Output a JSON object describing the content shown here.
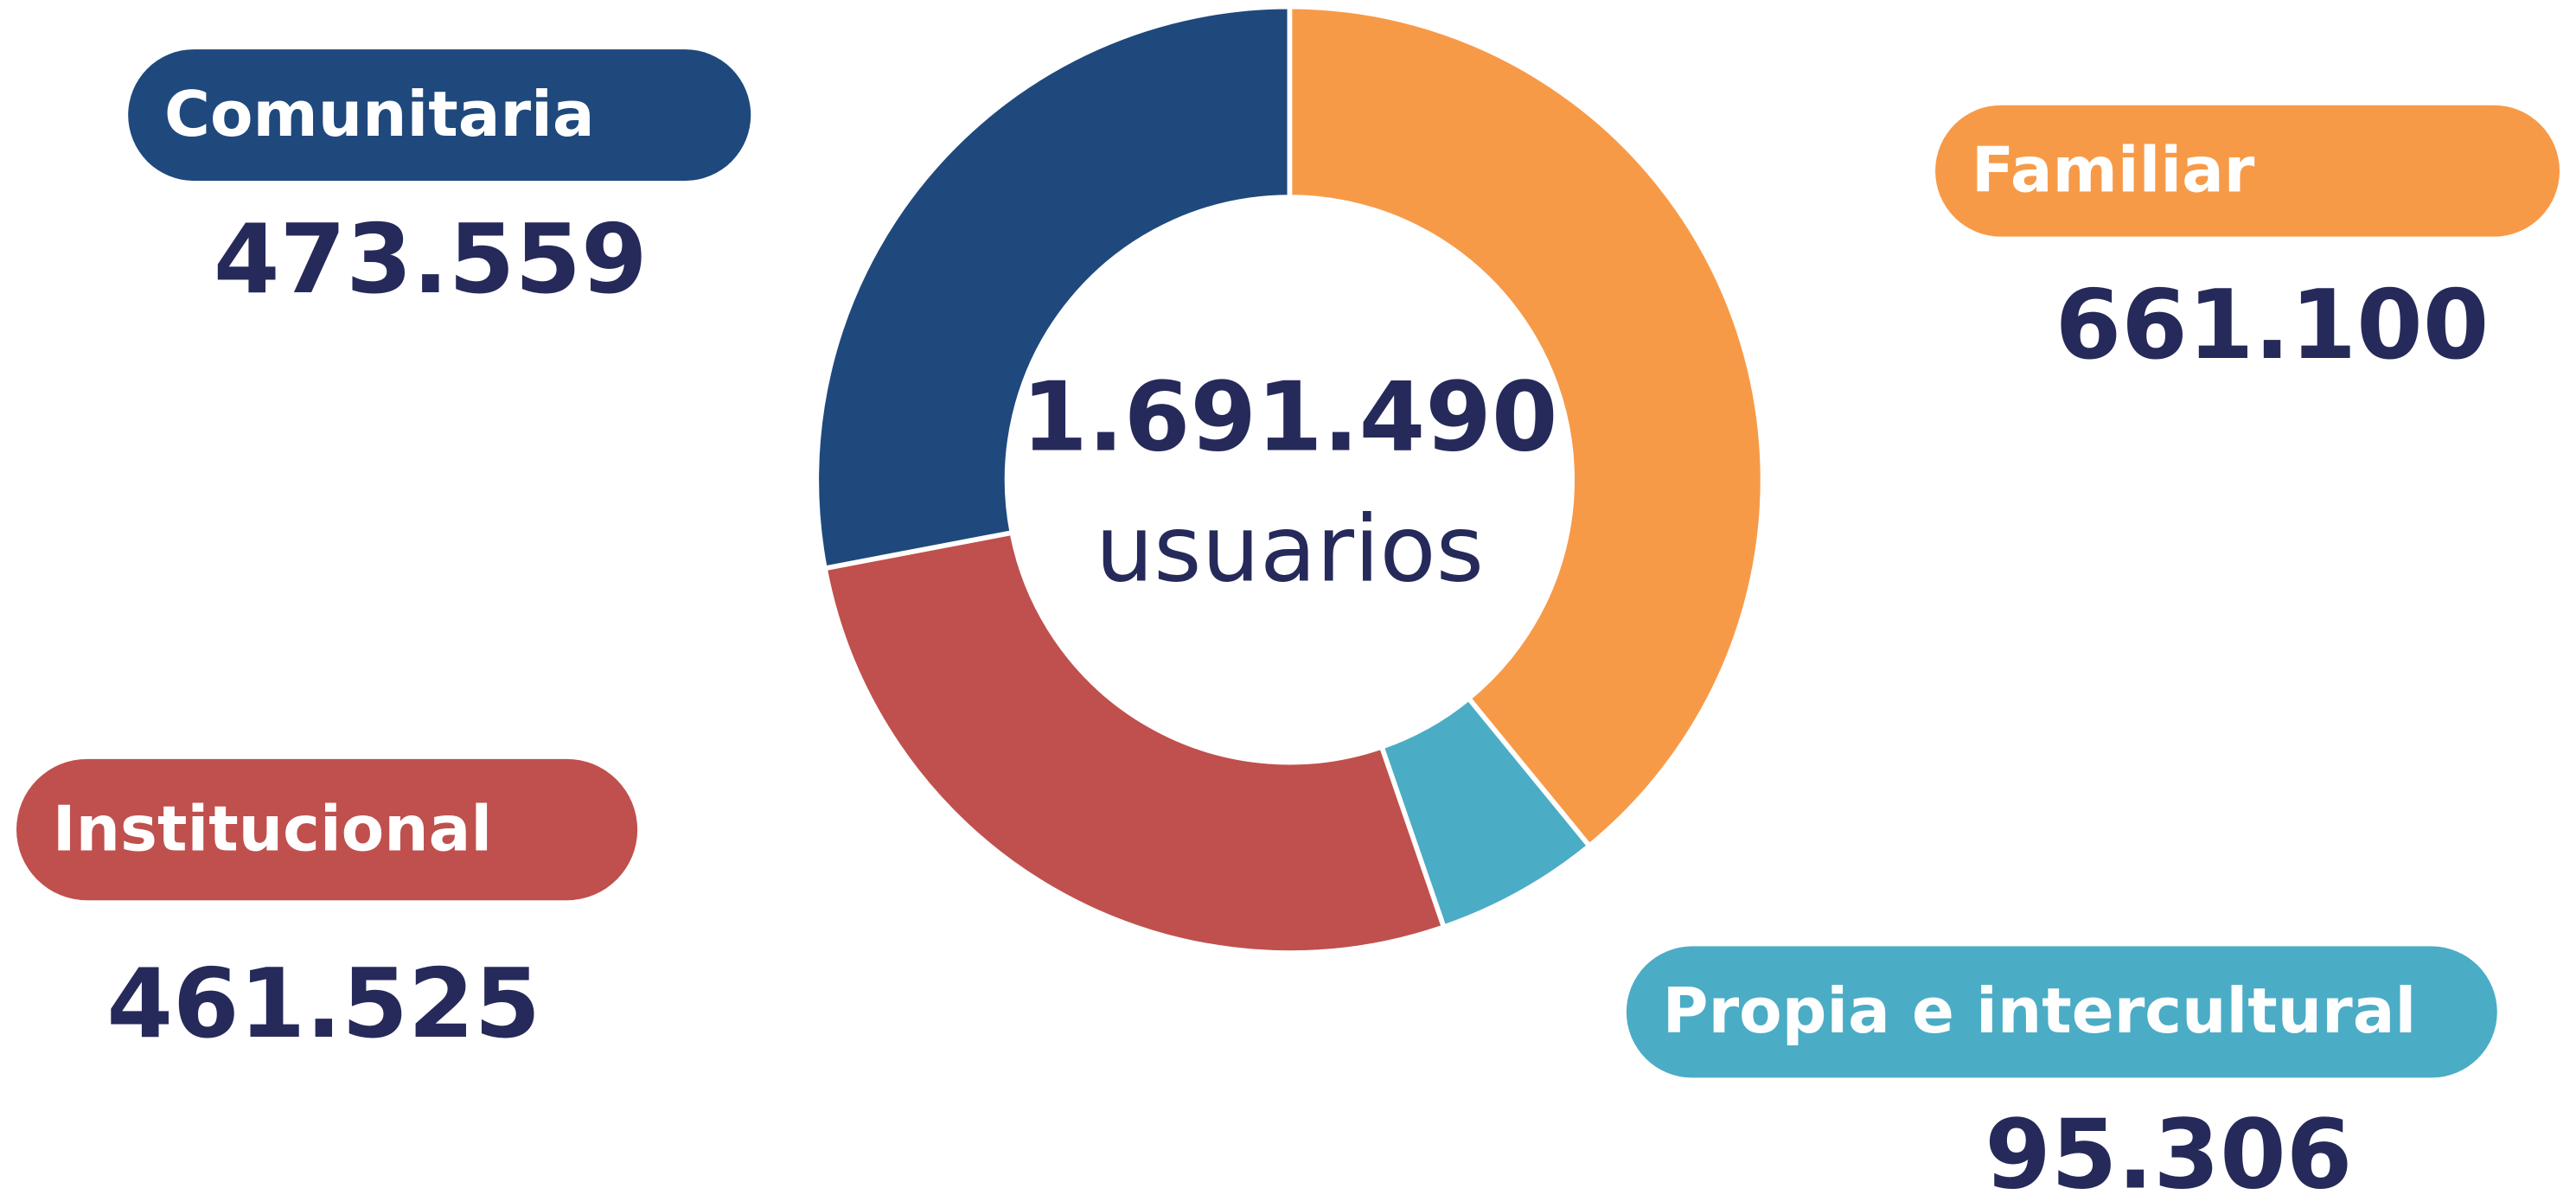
{
  "chart_data": {
    "type": "pie",
    "donut": true,
    "categories": [
      "Familiar",
      "Propia e intercultural",
      "Institucional",
      "Comunitaria"
    ],
    "values": [
      661100,
      95306,
      461525,
      473559
    ],
    "value_labels": [
      "661.100",
      "95.306",
      "461.525",
      "473.559"
    ],
    "colors": [
      "#f79a48",
      "#4bacc6",
      "#c0504d",
      "#1f497d"
    ],
    "total": 1691490,
    "total_label": "1.691.490",
    "center_text": "usuarios"
  }
}
